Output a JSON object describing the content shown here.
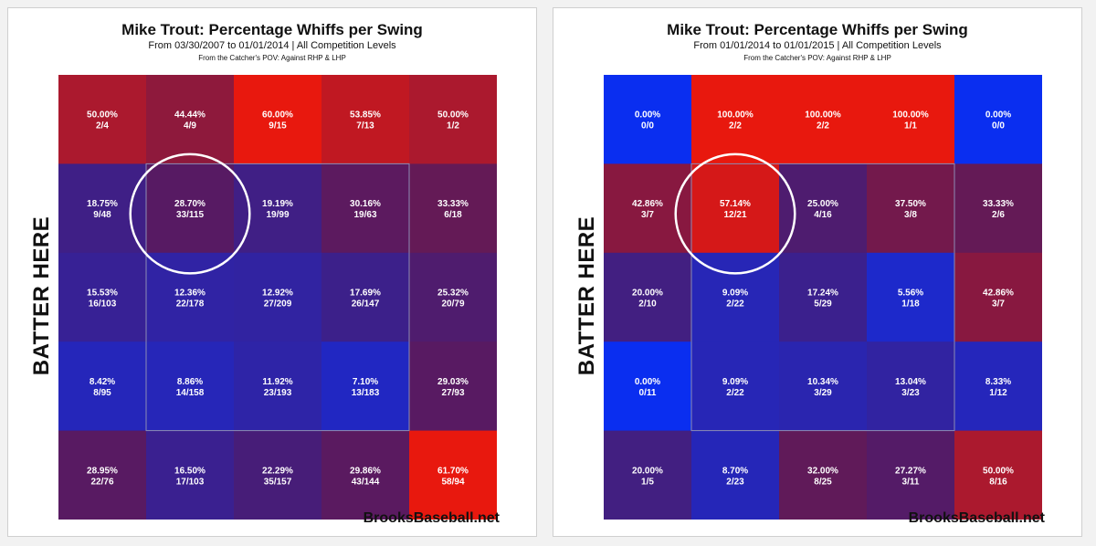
{
  "chart_data": [
    {
      "type": "heatmap",
      "title": "Mike Trout: Percentage Whiffs per Swing",
      "subtitle": "From 03/30/2007 to 01/01/2014 | All Competition Levels",
      "note": "From the Catcher's POV:  Against RHP & LHP",
      "side_label": "BATTER HERE",
      "source": "BrooksBaseball.net",
      "rows": 5,
      "cols": 5,
      "highlight_cell": [
        1,
        1
      ],
      "cells": [
        [
          {
            "pct": "50.00%",
            "frac": "2/4",
            "value": 50.0
          },
          {
            "pct": "44.44%",
            "frac": "4/9",
            "value": 44.44
          },
          {
            "pct": "60.00%",
            "frac": "9/15",
            "value": 60.0
          },
          {
            "pct": "53.85%",
            "frac": "7/13",
            "value": 53.85
          },
          {
            "pct": "50.00%",
            "frac": "1/2",
            "value": 50.0
          }
        ],
        [
          {
            "pct": "18.75%",
            "frac": "9/48",
            "value": 18.75
          },
          {
            "pct": "28.70%",
            "frac": "33/115",
            "value": 28.7
          },
          {
            "pct": "19.19%",
            "frac": "19/99",
            "value": 19.19
          },
          {
            "pct": "30.16%",
            "frac": "19/63",
            "value": 30.16
          },
          {
            "pct": "33.33%",
            "frac": "6/18",
            "value": 33.33
          }
        ],
        [
          {
            "pct": "15.53%",
            "frac": "16/103",
            "value": 15.53
          },
          {
            "pct": "12.36%",
            "frac": "22/178",
            "value": 12.36
          },
          {
            "pct": "12.92%",
            "frac": "27/209",
            "value": 12.92
          },
          {
            "pct": "17.69%",
            "frac": "26/147",
            "value": 17.69
          },
          {
            "pct": "25.32%",
            "frac": "20/79",
            "value": 25.32
          }
        ],
        [
          {
            "pct": "8.42%",
            "frac": "8/95",
            "value": 8.42
          },
          {
            "pct": "8.86%",
            "frac": "14/158",
            "value": 8.86
          },
          {
            "pct": "11.92%",
            "frac": "23/193",
            "value": 11.92
          },
          {
            "pct": "7.10%",
            "frac": "13/183",
            "value": 7.1
          },
          {
            "pct": "29.03%",
            "frac": "27/93",
            "value": 29.03
          }
        ],
        [
          {
            "pct": "28.95%",
            "frac": "22/76",
            "value": 28.95
          },
          {
            "pct": "16.50%",
            "frac": "17/103",
            "value": 16.5
          },
          {
            "pct": "22.29%",
            "frac": "35/157",
            "value": 22.29
          },
          {
            "pct": "29.86%",
            "frac": "43/144",
            "value": 29.86
          },
          {
            "pct": "61.70%",
            "frac": "58/94",
            "value": 61.7
          }
        ]
      ]
    },
    {
      "type": "heatmap",
      "title": "Mike Trout: Percentage Whiffs per Swing",
      "subtitle": "From 01/01/2014 to 01/01/2015 | All Competition Levels",
      "note": "From the Catcher's POV:  Against RHP & LHP",
      "side_label": "BATTER HERE",
      "source": "BrooksBaseball.net",
      "rows": 5,
      "cols": 5,
      "highlight_cell": [
        1,
        1
      ],
      "cells": [
        [
          {
            "pct": "0.00%",
            "frac": "0/0",
            "value": 0.0
          },
          {
            "pct": "100.00%",
            "frac": "2/2",
            "value": 100.0
          },
          {
            "pct": "100.00%",
            "frac": "2/2",
            "value": 100.0
          },
          {
            "pct": "100.00%",
            "frac": "1/1",
            "value": 100.0
          },
          {
            "pct": "0.00%",
            "frac": "0/0",
            "value": 0.0
          }
        ],
        [
          {
            "pct": "42.86%",
            "frac": "3/7",
            "value": 42.86
          },
          {
            "pct": "57.14%",
            "frac": "12/21",
            "value": 57.14
          },
          {
            "pct": "25.00%",
            "frac": "4/16",
            "value": 25.0
          },
          {
            "pct": "37.50%",
            "frac": "3/8",
            "value": 37.5
          },
          {
            "pct": "33.33%",
            "frac": "2/6",
            "value": 33.33
          }
        ],
        [
          {
            "pct": "20.00%",
            "frac": "2/10",
            "value": 20.0
          },
          {
            "pct": "9.09%",
            "frac": "2/22",
            "value": 9.09
          },
          {
            "pct": "17.24%",
            "frac": "5/29",
            "value": 17.24
          },
          {
            "pct": "5.56%",
            "frac": "1/18",
            "value": 5.56
          },
          {
            "pct": "42.86%",
            "frac": "3/7",
            "value": 42.86
          }
        ],
        [
          {
            "pct": "0.00%",
            "frac": "0/11",
            "value": 0.0
          },
          {
            "pct": "9.09%",
            "frac": "2/22",
            "value": 9.09
          },
          {
            "pct": "10.34%",
            "frac": "3/29",
            "value": 10.34
          },
          {
            "pct": "13.04%",
            "frac": "3/23",
            "value": 13.04
          },
          {
            "pct": "8.33%",
            "frac": "1/12",
            "value": 8.33
          }
        ],
        [
          {
            "pct": "20.00%",
            "frac": "1/5",
            "value": 20.0
          },
          {
            "pct": "8.70%",
            "frac": "2/23",
            "value": 8.7
          },
          {
            "pct": "32.00%",
            "frac": "8/25",
            "value": 32.0
          },
          {
            "pct": "27.27%",
            "frac": "3/11",
            "value": 27.27
          },
          {
            "pct": "50.00%",
            "frac": "8/16",
            "value": 50.0
          }
        ]
      ]
    }
  ],
  "colors": {
    "low": "#0a2ef0",
    "high": "#e8180e",
    "text": "#ffffff",
    "zone_border": "#8c8cb4",
    "circle": "#ffffff"
  }
}
